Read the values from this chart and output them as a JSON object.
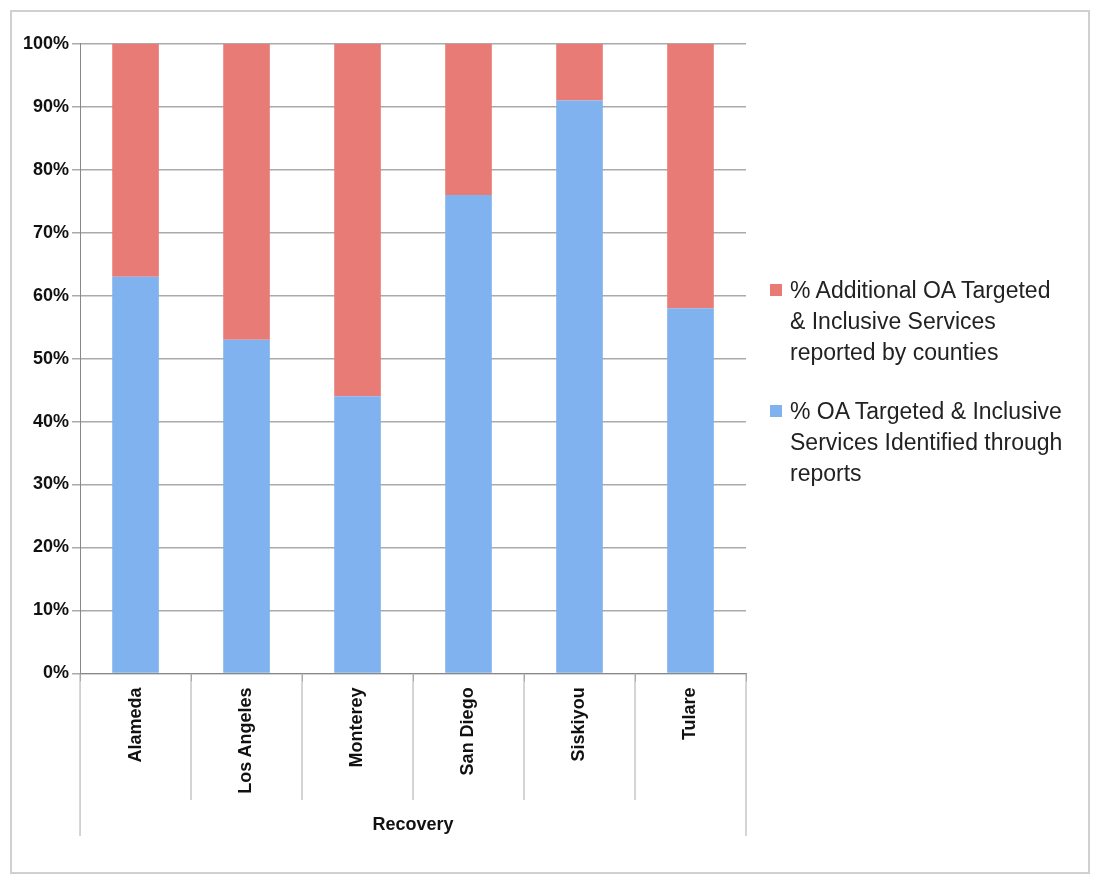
{
  "chart_data": {
    "type": "bar",
    "stacked": true,
    "xlabel": "Recovery",
    "categories": [
      "Alameda",
      "Los Angeles",
      "Monterey",
      "San Diego",
      "Siskiyou",
      "Tulare"
    ],
    "series": [
      {
        "name": "% OA Targeted & Inclusive Services Identified through reports",
        "color": "#7fb2ef",
        "values": [
          63,
          53,
          44,
          76,
          91,
          58
        ]
      },
      {
        "name": "% Additional OA Targeted & Inclusive Services reported by counties",
        "color": "#e97b76",
        "values": [
          37,
          47,
          56,
          24,
          9,
          42
        ]
      }
    ],
    "ylim": [
      0,
      100
    ],
    "yticks": [
      {
        "value": 0,
        "label": "0%"
      },
      {
        "value": 10,
        "label": "10%"
      },
      {
        "value": 20,
        "label": "20%"
      },
      {
        "value": 30,
        "label": "30%"
      },
      {
        "value": 40,
        "label": "40%"
      },
      {
        "value": 50,
        "label": "50%"
      },
      {
        "value": 60,
        "label": "60%"
      },
      {
        "value": 70,
        "label": "70%"
      },
      {
        "value": 80,
        "label": "80%"
      },
      {
        "value": 90,
        "label": "90%"
      },
      {
        "value": 100,
        "label": "100%"
      }
    ],
    "grid": "y",
    "legend": "right"
  }
}
